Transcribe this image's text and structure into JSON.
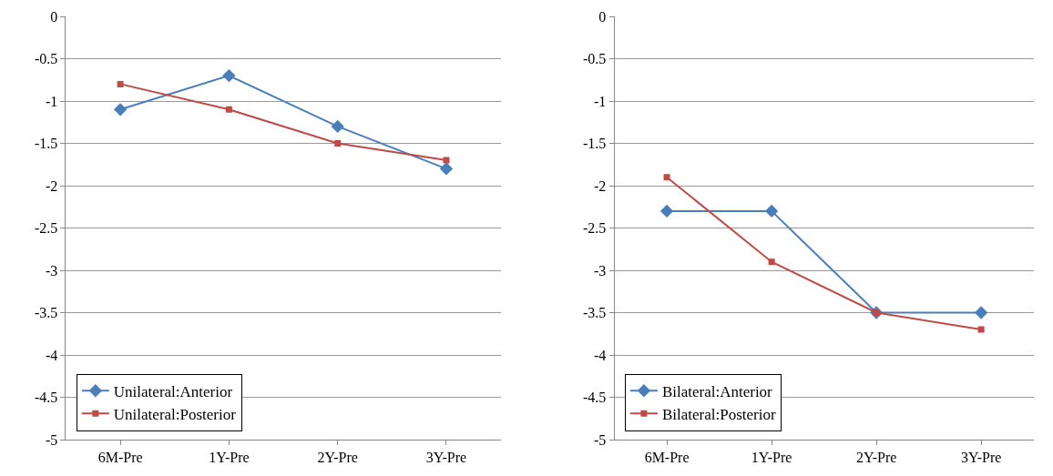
{
  "chart_data": [
    {
      "type": "line",
      "categories": [
        "6M-Pre",
        "1Y-Pre",
        "2Y-Pre",
        "3Y-Pre"
      ],
      "ylim": [
        -5,
        0
      ],
      "yticks": [
        0,
        -0.5,
        -1,
        -1.5,
        -2,
        -2.5,
        -3,
        -3.5,
        -4,
        -4.5,
        -5
      ],
      "grid": "y",
      "legend": "bottom left",
      "line_style": "solid",
      "series": [
        {
          "name": "Unilateral:Anterior",
          "color": "#4a7ebb",
          "marker": "diamond",
          "values": [
            -1.1,
            -0.7,
            -1.3,
            -1.8
          ]
        },
        {
          "name": "Unilateral:Posterior",
          "color": "#be4b48",
          "marker": "square",
          "values": [
            -0.8,
            -1.1,
            -1.5,
            -1.7
          ]
        }
      ]
    },
    {
      "type": "line",
      "categories": [
        "6M-Pre",
        "1Y-Pre",
        "2Y-Pre",
        "3Y-Pre"
      ],
      "ylim": [
        -5,
        0
      ],
      "yticks": [
        0,
        -0.5,
        -1,
        -1.5,
        -2,
        -2.5,
        -3,
        -3.5,
        -4,
        -4.5,
        -5
      ],
      "grid": "y",
      "legend": "bottom left",
      "line_style": "solid",
      "series": [
        {
          "name": "Bilateral:Anterior",
          "color": "#4a7ebb",
          "marker": "diamond",
          "values": [
            -2.3,
            -2.3,
            -3.5,
            -3.5
          ]
        },
        {
          "name": "Bilateral:Posterior",
          "color": "#be4b48",
          "marker": "square",
          "values": [
            -1.9,
            -2.9,
            -3.5,
            -3.7
          ]
        }
      ]
    }
  ]
}
